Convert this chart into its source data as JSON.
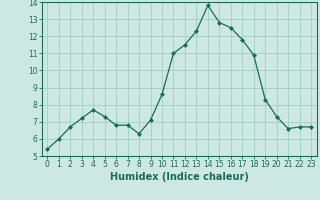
{
  "x": [
    0,
    1,
    2,
    3,
    4,
    5,
    6,
    7,
    8,
    9,
    10,
    11,
    12,
    13,
    14,
    15,
    16,
    17,
    18,
    19,
    20,
    21,
    22,
    23
  ],
  "y": [
    5.4,
    6.0,
    6.7,
    7.2,
    7.7,
    7.3,
    6.8,
    6.8,
    6.3,
    7.1,
    8.6,
    11.0,
    11.5,
    12.3,
    13.8,
    12.8,
    12.5,
    11.8,
    10.9,
    8.3,
    7.3,
    6.6,
    6.7,
    6.7
  ],
  "line_color": "#1a6b5a",
  "marker": "D",
  "marker_size": 2.0,
  "bg_color": "#cde8e2",
  "grid_color": "#9ecec6",
  "xlabel": "Humidex (Indice chaleur)",
  "ylim": [
    5,
    14
  ],
  "xlim": [
    -0.5,
    23.5
  ],
  "yticks": [
    5,
    6,
    7,
    8,
    9,
    10,
    11,
    12,
    13,
    14
  ],
  "xticks": [
    0,
    1,
    2,
    3,
    4,
    5,
    6,
    7,
    8,
    9,
    10,
    11,
    12,
    13,
    14,
    15,
    16,
    17,
    18,
    19,
    20,
    21,
    22,
    23
  ],
  "tick_fontsize": 5.5,
  "xlabel_fontsize": 7.0,
  "xlabel_bold": true,
  "linewidth": 0.9
}
